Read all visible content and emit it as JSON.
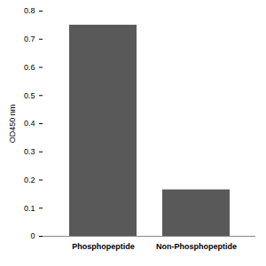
{
  "chart_data": {
    "type": "bar",
    "categories": [
      "Phosphopeptide",
      "Non-Phosphopeptide"
    ],
    "values": [
      0.75,
      0.165
    ],
    "color": "#595959",
    "y_label": "OD450 nm",
    "ylim": [
      0,
      0.8
    ],
    "yticks": [
      0,
      0.1,
      0.2,
      0.3,
      0.4,
      0.5,
      0.6,
      0.7,
      0.8
    ],
    "grid": false
  }
}
